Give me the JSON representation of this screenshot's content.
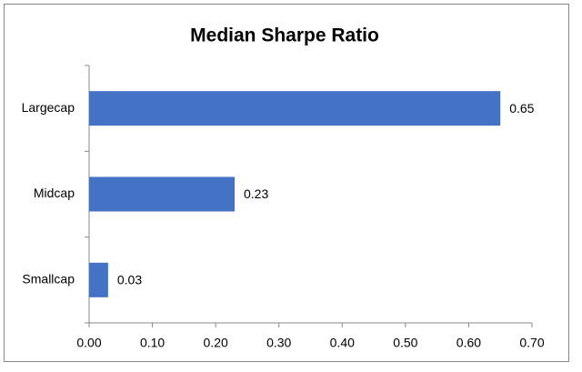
{
  "chart_data": {
    "type": "barh",
    "title": "Median Sharpe Ratio",
    "categories": [
      "Largecap",
      "Midcap",
      "Smallcap"
    ],
    "values": [
      0.65,
      0.23,
      0.03
    ],
    "color": "#4472c4",
    "xlim": [
      0,
      0.7
    ],
    "xticks": [
      {
        "value": 0,
        "label": "0.00"
      },
      {
        "value": 0.1,
        "label": "0.10"
      },
      {
        "value": 0.2,
        "label": "0.20"
      },
      {
        "value": 0.3,
        "label": "0.30"
      },
      {
        "value": 0.4,
        "label": "0.40"
      },
      {
        "value": 0.5,
        "label": "0.50"
      },
      {
        "value": 0.6,
        "label": "0.60"
      },
      {
        "value": 0.7,
        "label": "0.70"
      }
    ],
    "grid": false
  }
}
